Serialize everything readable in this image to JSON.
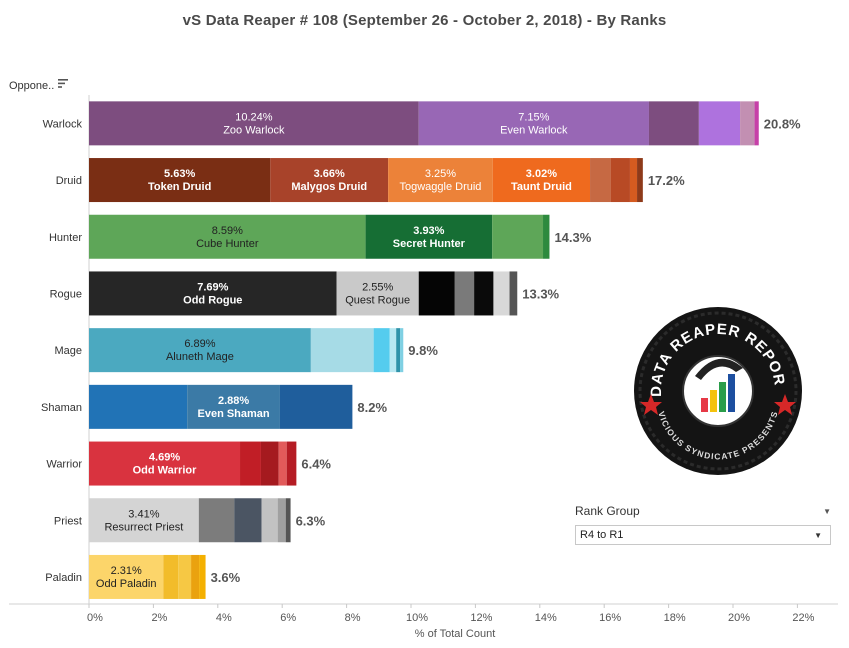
{
  "title": "vS Data Reaper #  108 (September 26 - October 2, 2018) - By Ranks",
  "opponent_header": "Oppone..",
  "rank_filter": {
    "title": "Rank Group",
    "selected": "R4 to R1"
  },
  "logo": {
    "text_top": "DATA REAPER REPORT",
    "text_bottom": "VICIOUS SYNDICATE PRESENTS"
  },
  "chart_data": {
    "type": "bar",
    "orientation": "horizontal",
    "stacked": true,
    "xlabel": "% of Total Count",
    "xlim": [
      0,
      22
    ],
    "xticks": [
      "0%",
      "2%",
      "4%",
      "6%",
      "8%",
      "10%",
      "12%",
      "14%",
      "16%",
      "18%",
      "20%",
      "22%"
    ],
    "categories": [
      "Warlock",
      "Druid",
      "Hunter",
      "Rogue",
      "Mage",
      "Shaman",
      "Warrior",
      "Priest",
      "Paladin"
    ],
    "rows": [
      {
        "class": "Warlock",
        "total": 20.8,
        "total_label": "20.8%",
        "segments": [
          {
            "value": 10.24,
            "name": "Zoo Warlock",
            "label": "10.24%",
            "color": "#7d4d7f"
          },
          {
            "value": 7.15,
            "name": "Even Warlock",
            "label": "7.15%",
            "color": "#9867b5"
          },
          {
            "value": 1.55,
            "color": "#7d4d7f"
          },
          {
            "value": 1.28,
            "color": "#ae72de"
          },
          {
            "value": 0.45,
            "color": "#c28fb2"
          },
          {
            "value": 0.13,
            "color": "#c640a8"
          }
        ]
      },
      {
        "class": "Druid",
        "total": 17.2,
        "total_label": "17.2%",
        "segments": [
          {
            "value": 5.63,
            "name": "Token Druid",
            "label": "5.63%",
            "color": "#7a2e14",
            "bold": true
          },
          {
            "value": 3.66,
            "name": "Malygos Druid",
            "label": "3.66%",
            "color": "#a8432a",
            "bold": true
          },
          {
            "value": 3.25,
            "name": "Togwaggle Druid",
            "label": "3.25%",
            "color": "#ec8239"
          },
          {
            "value": 3.02,
            "name": "Taunt Druid",
            "label": "3.02%",
            "color": "#ef6a1e",
            "bold": true
          },
          {
            "value": 0.64,
            "color": "#c66943"
          },
          {
            "value": 0.6,
            "color": "#b84a25"
          },
          {
            "value": 0.22,
            "color": "#d55b20"
          },
          {
            "value": 0.18,
            "color": "#8e3a1a"
          }
        ]
      },
      {
        "class": "Hunter",
        "total": 14.3,
        "total_label": "14.3%",
        "segments": [
          {
            "value": 8.59,
            "name": "Cube Hunter",
            "label": "8.59%",
            "color": "#5ea658",
            "dark": true
          },
          {
            "value": 3.93,
            "name": "Secret Hunter",
            "label": "3.93%",
            "color": "#166e34",
            "bold": true
          },
          {
            "value": 1.58,
            "color": "#5ea658"
          },
          {
            "value": 0.2,
            "color": "#2d8a3e"
          }
        ]
      },
      {
        "class": "Rogue",
        "total": 13.3,
        "total_label": "13.3%",
        "segments": [
          {
            "value": 7.69,
            "name": "Odd Rogue",
            "label": "7.69%",
            "color": "#262626",
            "bold": true
          },
          {
            "value": 2.55,
            "name": "Quest Rogue",
            "label": "2.55%",
            "color": "#c9c9c9",
            "dark": true
          },
          {
            "value": 1.12,
            "color": "#050505"
          },
          {
            "value": 0.6,
            "color": "#7a7a7a"
          },
          {
            "value": 0.6,
            "color": "#0a0a0a"
          },
          {
            "value": 0.5,
            "color": "#d8d8d8"
          },
          {
            "value": 0.24,
            "color": "#555555"
          }
        ]
      },
      {
        "class": "Mage",
        "total": 9.8,
        "total_label": "9.8%",
        "segments": [
          {
            "value": 6.89,
            "name": "Aluneth Mage",
            "label": "6.89%",
            "color": "#4ba9c0",
            "dark": true
          },
          {
            "value": 1.95,
            "color": "#a6dbe6"
          },
          {
            "value": 0.5,
            "color": "#55ccee"
          },
          {
            "value": 0.2,
            "color": "#b8e8f2"
          },
          {
            "value": 0.12,
            "color": "#2f93aa"
          },
          {
            "value": 0.1,
            "color": "#7fd0e3"
          }
        ]
      },
      {
        "class": "Shaman",
        "total": 8.2,
        "total_label": "8.2%",
        "segments": [
          {
            "value": 3.05,
            "color": "#2173b6"
          },
          {
            "value": 2.88,
            "name": "Even Shaman",
            "label": "2.88%",
            "color": "#3b7aa6",
            "bold": true
          },
          {
            "value": 2.25,
            "color": "#1f5e9c"
          }
        ]
      },
      {
        "class": "Warrior",
        "total": 6.4,
        "total_label": "6.4%",
        "segments": [
          {
            "value": 4.69,
            "name": "Odd Warrior",
            "label": "4.69%",
            "color": "#d9333f",
            "bold": true
          },
          {
            "value": 0.65,
            "color": "#c11e26"
          },
          {
            "value": 0.55,
            "color": "#a51a1f"
          },
          {
            "value": 0.25,
            "color": "#e25a5a"
          },
          {
            "value": 0.3,
            "color": "#b51c24"
          }
        ]
      },
      {
        "class": "Priest",
        "total": 6.3,
        "total_label": "6.3%",
        "segments": [
          {
            "value": 3.41,
            "name": "Resurrect Priest",
            "label": "3.41%",
            "color": "#d4d4d4",
            "dark": true
          },
          {
            "value": 1.1,
            "color": "#7c7c7c"
          },
          {
            "value": 0.85,
            "color": "#4b5563"
          },
          {
            "value": 0.5,
            "color": "#c2c2c2"
          },
          {
            "value": 0.25,
            "color": "#a0a0a0"
          },
          {
            "value": 0.15,
            "color": "#555555"
          }
        ]
      },
      {
        "class": "Paladin",
        "total": 3.6,
        "total_label": "3.6%",
        "segments": [
          {
            "value": 2.31,
            "name": "Odd Paladin",
            "label": "2.31%",
            "color": "#fcd56a",
            "dark": true
          },
          {
            "value": 0.46,
            "color": "#f2bc2a"
          },
          {
            "value": 0.4,
            "color": "#f6c844"
          },
          {
            "value": 0.25,
            "color": "#eaa20f"
          },
          {
            "value": 0.2,
            "color": "#f4b000"
          }
        ]
      }
    ]
  }
}
